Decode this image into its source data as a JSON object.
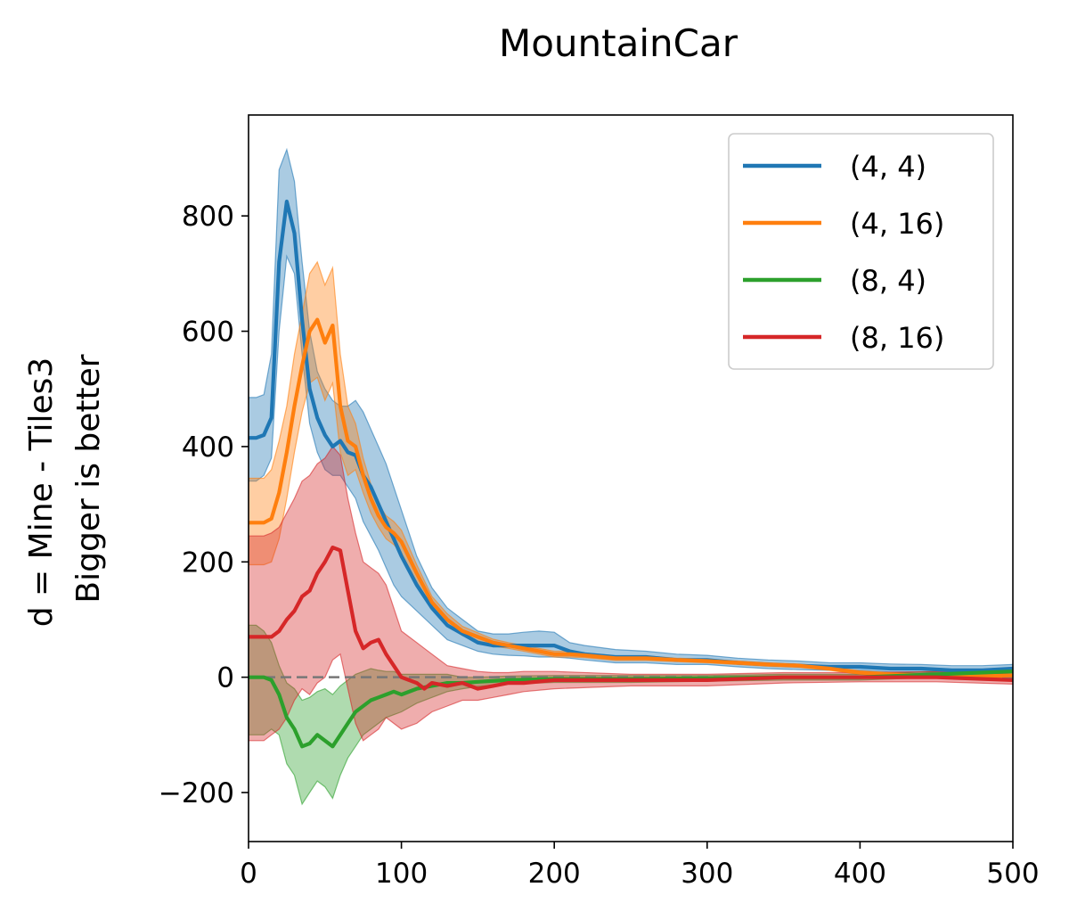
{
  "chart_data": {
    "type": "line",
    "title": "MountainCar",
    "xlabel": "",
    "ylabel_line1": "d = Mine - Tiles3",
    "ylabel_line2": "Bigger is better",
    "xlim": [
      0,
      500
    ],
    "ylim": [
      -285,
      975
    ],
    "xticks": [
      0,
      100,
      200,
      300,
      400,
      500
    ],
    "yticks": [
      -200,
      0,
      200,
      400,
      600,
      800
    ],
    "xtick_labels": [
      "0",
      "100",
      "200",
      "300",
      "400",
      "500"
    ],
    "ytick_labels": [
      "−200",
      "0",
      "200",
      "400",
      "600",
      "800"
    ],
    "grid": false,
    "legend_position": "top-right",
    "reference_line": {
      "y": 0,
      "style": "dashed",
      "color": "#777777"
    },
    "series": [
      {
        "name": "(4, 4)",
        "color": "#1f77b4",
        "x": [
          0,
          5,
          10,
          15,
          20,
          25,
          30,
          35,
          40,
          45,
          50,
          55,
          60,
          65,
          70,
          75,
          80,
          85,
          90,
          95,
          100,
          110,
          120,
          130,
          140,
          150,
          160,
          170,
          180,
          190,
          200,
          210,
          220,
          240,
          260,
          280,
          300,
          320,
          340,
          360,
          380,
          400,
          420,
          440,
          460,
          480,
          500
        ],
        "y": [
          415,
          415,
          420,
          450,
          720,
          825,
          770,
          620,
          500,
          450,
          420,
          400,
          410,
          390,
          385,
          350,
          330,
          300,
          270,
          240,
          210,
          160,
          120,
          90,
          75,
          60,
          55,
          55,
          55,
          55,
          55,
          45,
          40,
          35,
          35,
          30,
          30,
          25,
          22,
          20,
          18,
          18,
          15,
          15,
          12,
          12,
          15
        ],
        "upper": [
          485,
          485,
          490,
          560,
          880,
          915,
          860,
          720,
          600,
          530,
          500,
          480,
          470,
          470,
          480,
          460,
          430,
          400,
          370,
          330,
          290,
          210,
          155,
          120,
          100,
          80,
          75,
          75,
          78,
          80,
          78,
          60,
          55,
          48,
          45,
          40,
          38,
          33,
          30,
          28,
          25,
          25,
          23,
          22,
          20,
          20,
          22
        ],
        "lower": [
          340,
          340,
          350,
          380,
          600,
          730,
          700,
          560,
          440,
          390,
          360,
          350,
          350,
          330,
          310,
          270,
          245,
          220,
          190,
          160,
          140,
          115,
          90,
          65,
          55,
          45,
          40,
          38,
          37,
          35,
          35,
          33,
          30,
          25,
          25,
          22,
          22,
          18,
          15,
          13,
          12,
          12,
          9,
          9,
          6,
          6,
          8
        ]
      },
      {
        "name": "(4, 16)",
        "color": "#ff7f0e",
        "x": [
          0,
          5,
          10,
          15,
          20,
          25,
          30,
          35,
          40,
          45,
          50,
          55,
          60,
          65,
          70,
          75,
          80,
          85,
          90,
          95,
          100,
          110,
          120,
          130,
          140,
          150,
          160,
          170,
          180,
          190,
          200,
          210,
          220,
          240,
          260,
          280,
          300,
          320,
          340,
          360,
          380,
          400,
          420,
          440,
          460,
          480,
          500
        ],
        "y": [
          268,
          268,
          268,
          275,
          320,
          390,
          470,
          540,
          600,
          620,
          580,
          610,
          470,
          410,
          400,
          350,
          310,
          280,
          260,
          250,
          235,
          180,
          130,
          100,
          80,
          70,
          60,
          55,
          50,
          45,
          40,
          40,
          38,
          33,
          33,
          30,
          28,
          25,
          22,
          20,
          15,
          8,
          5,
          3,
          2,
          2,
          3
        ],
        "upper": [
          345,
          345,
          345,
          360,
          410,
          470,
          560,
          630,
          700,
          720,
          680,
          710,
          560,
          470,
          440,
          380,
          335,
          300,
          280,
          270,
          255,
          195,
          140,
          110,
          88,
          77,
          66,
          60,
          55,
          50,
          45,
          45,
          42,
          37,
          37,
          33,
          31,
          28,
          25,
          23,
          18,
          11,
          8,
          6,
          5,
          5,
          6
        ],
        "lower": [
          195,
          195,
          195,
          200,
          240,
          310,
          390,
          460,
          510,
          520,
          480,
          510,
          390,
          350,
          360,
          320,
          285,
          260,
          240,
          230,
          215,
          165,
          120,
          90,
          72,
          63,
          54,
          50,
          45,
          40,
          35,
          35,
          34,
          29,
          29,
          27,
          25,
          22,
          19,
          17,
          12,
          5,
          2,
          0,
          -1,
          -1,
          0
        ]
      },
      {
        "name": "(8, 4)",
        "color": "#2ca02c",
        "x": [
          0,
          5,
          10,
          15,
          20,
          25,
          30,
          35,
          40,
          45,
          50,
          55,
          60,
          65,
          70,
          75,
          80,
          85,
          90,
          95,
          100,
          110,
          120,
          130,
          140,
          150,
          170,
          200,
          250,
          300,
          350,
          400,
          450,
          500
        ],
        "y": [
          0,
          0,
          0,
          -5,
          -30,
          -70,
          -90,
          -120,
          -115,
          -100,
          -110,
          -120,
          -100,
          -80,
          -60,
          -50,
          -40,
          -35,
          -30,
          -25,
          -30,
          -20,
          -15,
          -10,
          -10,
          -8,
          -5,
          -3,
          -3,
          -2,
          0,
          0,
          5,
          10
        ],
        "upper": [
          90,
          90,
          80,
          60,
          20,
          -10,
          -20,
          -40,
          -35,
          -25,
          -20,
          -30,
          -15,
          -5,
          5,
          10,
          15,
          12,
          10,
          10,
          5,
          5,
          5,
          5,
          0,
          0,
          2,
          3,
          3,
          3,
          5,
          5,
          10,
          15
        ],
        "lower": [
          -100,
          -100,
          -100,
          -90,
          -100,
          -150,
          -170,
          -220,
          -200,
          -180,
          -190,
          -210,
          -170,
          -140,
          -120,
          -100,
          -90,
          -80,
          -70,
          -65,
          -60,
          -45,
          -35,
          -25,
          -20,
          -16,
          -12,
          -9,
          -9,
          -7,
          -5,
          -5,
          0,
          5
        ]
      },
      {
        "name": "(8, 16)",
        "color": "#d62728",
        "x": [
          0,
          5,
          10,
          15,
          20,
          25,
          30,
          35,
          40,
          45,
          50,
          55,
          60,
          65,
          70,
          75,
          80,
          85,
          90,
          95,
          100,
          105,
          110,
          115,
          120,
          130,
          140,
          150,
          160,
          170,
          180,
          200,
          250,
          300,
          350,
          400,
          450,
          500
        ],
        "y": [
          70,
          70,
          70,
          70,
          80,
          100,
          115,
          140,
          150,
          180,
          200,
          225,
          220,
          150,
          80,
          50,
          60,
          65,
          40,
          20,
          0,
          -5,
          -10,
          -20,
          -10,
          -15,
          -10,
          -20,
          -15,
          -10,
          -10,
          -5,
          -5,
          -5,
          0,
          0,
          0,
          -5
        ],
        "upper": [
          245,
          245,
          245,
          250,
          260,
          285,
          310,
          340,
          350,
          370,
          380,
          400,
          385,
          310,
          250,
          200,
          190,
          180,
          160,
          120,
          80,
          70,
          60,
          50,
          40,
          20,
          15,
          10,
          8,
          8,
          10,
          10,
          5,
          5,
          8,
          8,
          10,
          5
        ],
        "lower": [
          -110,
          -110,
          -110,
          -100,
          -90,
          -70,
          -40,
          -20,
          -30,
          -10,
          0,
          30,
          40,
          -20,
          -80,
          -110,
          -100,
          -90,
          -70,
          -80,
          -90,
          -85,
          -80,
          -70,
          -60,
          -50,
          -40,
          -40,
          -35,
          -30,
          -25,
          -20,
          -15,
          -15,
          -10,
          -8,
          -8,
          -12
        ]
      }
    ]
  }
}
